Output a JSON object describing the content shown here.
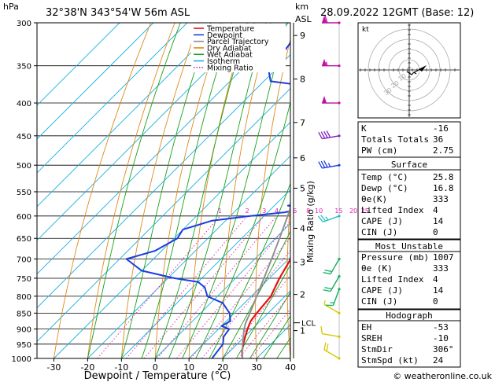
{
  "header": {
    "hpa_label": "hPa",
    "location": "32°38'N  343°54'W  56m  ASL",
    "km_label": "km",
    "asl_label": "ASL",
    "datetime": "28.09.2022  12GMT  (Base: 12)"
  },
  "legend": [
    {
      "label": "Temperature",
      "color": "#e81010"
    },
    {
      "label": "Dewpoint",
      "color": "#1a3de0"
    },
    {
      "label": "Parcel Trajectory",
      "color": "#909090"
    },
    {
      "label": "Dry Adiabat",
      "color": "#e08a1a"
    },
    {
      "label": "Wet Adiabat",
      "color": "#18a018"
    },
    {
      "label": "Isotherm",
      "color": "#18b0e0"
    },
    {
      "label": "Mixing Ratio",
      "color": "#e020b0"
    }
  ],
  "chart_data": {
    "type": "skew-t log-p",
    "title": "32°38'N  343°54'W  56m  ASL",
    "xlabel": "Dewpoint / Temperature (°C)",
    "ylabel": "hPa",
    "xlim": [
      -35,
      40
    ],
    "ylim": [
      1000,
      300
    ],
    "x_ticks": [
      -30,
      -20,
      -10,
      0,
      10,
      20,
      30,
      40
    ],
    "pressure_levels": [
      300,
      350,
      400,
      450,
      500,
      550,
      600,
      650,
      700,
      750,
      800,
      850,
      900,
      950,
      1000
    ],
    "km_ticks": [
      {
        "label": "1",
        "p": 905
      },
      {
        "label": "2",
        "p": 795
      },
      {
        "label": "3",
        "p": 708
      },
      {
        "label": "4",
        "p": 627
      },
      {
        "label": "5",
        "p": 543
      },
      {
        "label": "6",
        "p": 487
      },
      {
        "label": "7",
        "p": 429
      },
      {
        "label": "8",
        "p": 367
      },
      {
        "label": "9",
        "p": 314
      }
    ],
    "lcl": {
      "label": "LCL",
      "p": 880
    },
    "mixing_ratio_label": "Mixing Ratio (g/kg)",
    "mixing_ratio_values": [
      "1",
      "2",
      "3",
      "4",
      "6",
      "8",
      "10",
      "15",
      "20",
      "25"
    ],
    "mixing_ratio_numbers": [
      1,
      2,
      3,
      4,
      6,
      8,
      10,
      15,
      20,
      25
    ],
    "series": [
      {
        "name": "Temperature",
        "points": [
          [
            1000,
            25.8
          ],
          [
            975,
            23.6
          ],
          [
            950,
            21.8
          ],
          [
            925,
            20.2
          ],
          [
            900,
            18.6
          ],
          [
            875,
            17.2
          ],
          [
            850,
            16.6
          ],
          [
            800,
            15.8
          ],
          [
            775,
            14.4
          ],
          [
            750,
            13.0
          ],
          [
            700,
            10.6
          ],
          [
            650,
            7.2
          ],
          [
            600,
            3.0
          ],
          [
            550,
            -1.4
          ],
          [
            500,
            -6.2
          ],
          [
            450,
            -11.6
          ],
          [
            425,
            -14.6
          ],
          [
            400,
            -19.0
          ],
          [
            350,
            -27.6
          ],
          [
            300,
            -37.8
          ]
        ]
      },
      {
        "name": "Dewpoint",
        "points": [
          [
            1000,
            16.8
          ],
          [
            950,
            15.8
          ],
          [
            925,
            13.8
          ],
          [
            900,
            13.2
          ],
          [
            890,
            10.0
          ],
          [
            875,
            11.2
          ],
          [
            850,
            8.6
          ],
          [
            820,
            3.6
          ],
          [
            800,
            -3.0
          ],
          [
            775,
            -6.4
          ],
          [
            760,
            -10.0
          ],
          [
            750,
            -18.0
          ],
          [
            730,
            -30.0
          ],
          [
            700,
            -38.0
          ],
          [
            680,
            -32.0
          ],
          [
            650,
            -29.0
          ],
          [
            630,
            -30.0
          ],
          [
            610,
            -24.0
          ],
          [
            600,
            -14.0
          ],
          [
            592,
            -5.0
          ],
          [
            584,
            -0.2
          ],
          [
            578,
            -6.0
          ],
          [
            570,
            0.8
          ],
          [
            560,
            -3.0
          ],
          [
            550,
            -4.0
          ],
          [
            500,
            -11.8
          ],
          [
            470,
            -15.6
          ],
          [
            450,
            -18.2
          ],
          [
            430,
            -17.4
          ],
          [
            410,
            -22.0
          ],
          [
            395,
            -27.0
          ],
          [
            380,
            -28.5
          ],
          [
            370,
            -48.0
          ],
          [
            355,
            -52.0
          ],
          [
            330,
            -53.0
          ],
          [
            315,
            -54.0
          ],
          [
            300,
            -58.0
          ]
        ]
      },
      {
        "name": "Parcel Trajectory",
        "points": [
          [
            1000,
            25.8
          ],
          [
            950,
            21.6
          ],
          [
            900,
            17.6
          ],
          [
            880,
            16.2
          ],
          [
            850,
            14.6
          ],
          [
            800,
            11.6
          ],
          [
            750,
            8.4
          ],
          [
            700,
            5.0
          ],
          [
            650,
            1.2
          ],
          [
            600,
            -3.0
          ],
          [
            550,
            -7.8
          ],
          [
            500,
            -13.2
          ],
          [
            450,
            -19.4
          ],
          [
            400,
            -26.6
          ],
          [
            350,
            -35.2
          ],
          [
            300,
            -45.6
          ]
        ]
      }
    ],
    "wind_barbs": [
      {
        "p": 1000,
        "dir": 300,
        "spd": 24,
        "color": "#d8c800"
      },
      {
        "p": 925,
        "dir": 280,
        "spd": 10,
        "color": "#d8c800"
      },
      {
        "p": 850,
        "dir": 300,
        "spd": 5,
        "color": "#d8c800"
      },
      {
        "p": 780,
        "dir": 200,
        "spd": 15,
        "color": "#10b060"
      },
      {
        "p": 745,
        "dir": 210,
        "spd": 20,
        "color": "#10b060"
      },
      {
        "p": 700,
        "dir": 210,
        "spd": 20,
        "color": "#10b060"
      },
      {
        "p": 600,
        "dir": 250,
        "spd": 25,
        "color": "#20c0c0"
      },
      {
        "p": 500,
        "dir": 260,
        "spd": 35,
        "color": "#1a40e0"
      },
      {
        "p": 450,
        "dir": 260,
        "spd": 40,
        "color": "#8020c0"
      },
      {
        "p": 400,
        "dir": 270,
        "spd": 50,
        "color": "#c010a0"
      },
      {
        "p": 350,
        "dir": 270,
        "spd": 55,
        "color": "#c010a0"
      },
      {
        "p": 300,
        "dir": 270,
        "spd": 60,
        "color": "#c010a0"
      }
    ]
  },
  "hodograph": {
    "unit_label": "kt",
    "ring_labels": [
      "10",
      "20",
      "30"
    ]
  },
  "indices": {
    "k": {
      "label": "K",
      "value": "-16"
    },
    "tt": {
      "label": "Totals Totals",
      "value": "36"
    },
    "pw": {
      "label": "PW (cm)",
      "value": "2.75"
    }
  },
  "surface": {
    "title": "Surface",
    "temp": {
      "label": "Temp (°C)",
      "value": "25.8"
    },
    "dewp": {
      "label": "Dewp (°C)",
      "value": "16.8"
    },
    "thetae": {
      "label": "θe(K)",
      "value": "333"
    },
    "li": {
      "label": "Lifted Index",
      "value": "4"
    },
    "cape": {
      "label": "CAPE (J)",
      "value": "14"
    },
    "cin": {
      "label": "CIN (J)",
      "value": "0"
    }
  },
  "most_unstable": {
    "title": "Most Unstable",
    "pressure": {
      "label": "Pressure (mb)",
      "value": "1007"
    },
    "thetae": {
      "label": "θe (K)",
      "value": "333"
    },
    "li": {
      "label": "Lifted Index",
      "value": "4"
    },
    "cape": {
      "label": "CAPE (J)",
      "value": "14"
    },
    "cin": {
      "label": "CIN (J)",
      "value": "0"
    }
  },
  "hodo_table": {
    "title": "Hodograph",
    "eh": {
      "label": "EH",
      "value": "-53"
    },
    "sreh": {
      "label": "SREH",
      "value": "-10"
    },
    "stmdir": {
      "label": "StmDir",
      "value": "306°"
    },
    "stmspd": {
      "label": "StmSpd (kt)",
      "value": "24"
    }
  },
  "footer": {
    "copyright": "© weatheronline.co.uk"
  }
}
